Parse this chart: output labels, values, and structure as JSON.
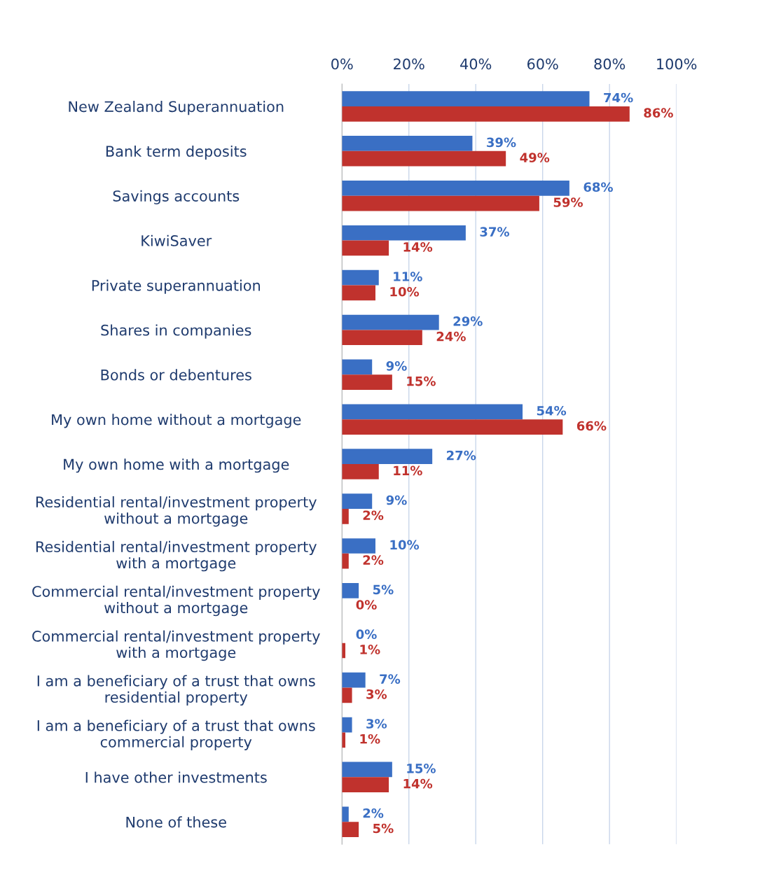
{
  "chart_data": {
    "type": "bar",
    "orientation": "horizontal",
    "categories": [
      "New Zealand Superannuation",
      "Bank term deposits",
      "Savings accounts",
      "KiwiSaver",
      "Private superannuation",
      "Shares in companies",
      "Bonds or debentures",
      "My own home without a mortgage",
      "My own home with a mortgage",
      "Residential rental/investment property\nwithout a mortgage",
      "Residential rental/investment property\nwith a mortgage",
      "Commercial rental/investment property\nwithout a mortgage",
      "Commercial rental/investment property\nwith a mortgage",
      "I am a beneficiary of a trust that owns\nresidential property",
      "I am a beneficiary of a trust that owns\ncommercial property",
      "I have other investments",
      "None of these"
    ],
    "series": [
      {
        "color": "#3a6fc4",
        "values": [
          74,
          39,
          68,
          37,
          11,
          29,
          9,
          54,
          27,
          9,
          10,
          5,
          0,
          7,
          3,
          15,
          2
        ],
        "value_labels": [
          "74%",
          "39%",
          "68%",
          "37%",
          "11%",
          "29%",
          "9%",
          "54%",
          "27%",
          "9%",
          "10%",
          "5%",
          "0%",
          "7%",
          "3%",
          "15%",
          "2%"
        ]
      },
      {
        "color": "#c0322d",
        "values": [
          86,
          49,
          59,
          14,
          10,
          24,
          15,
          66,
          11,
          2,
          2,
          0,
          1,
          3,
          1,
          14,
          5
        ],
        "value_labels": [
          "86%",
          "49%",
          "59%",
          "14%",
          "10%",
          "24%",
          "15%",
          "66%",
          "11%",
          "2%",
          "2%",
          "0%",
          "1%",
          "3%",
          "1%",
          "14%",
          "5%"
        ]
      }
    ],
    "xlim": [
      0,
      100
    ],
    "xticks": [
      {
        "value": 0,
        "label": "0%"
      },
      {
        "value": 20,
        "label": "20%"
      },
      {
        "value": 40,
        "label": "40%"
      },
      {
        "value": 60,
        "label": "60%"
      },
      {
        "value": 80,
        "label": "80%"
      },
      {
        "value": 100,
        "label": "100%"
      }
    ],
    "grid": "x"
  }
}
